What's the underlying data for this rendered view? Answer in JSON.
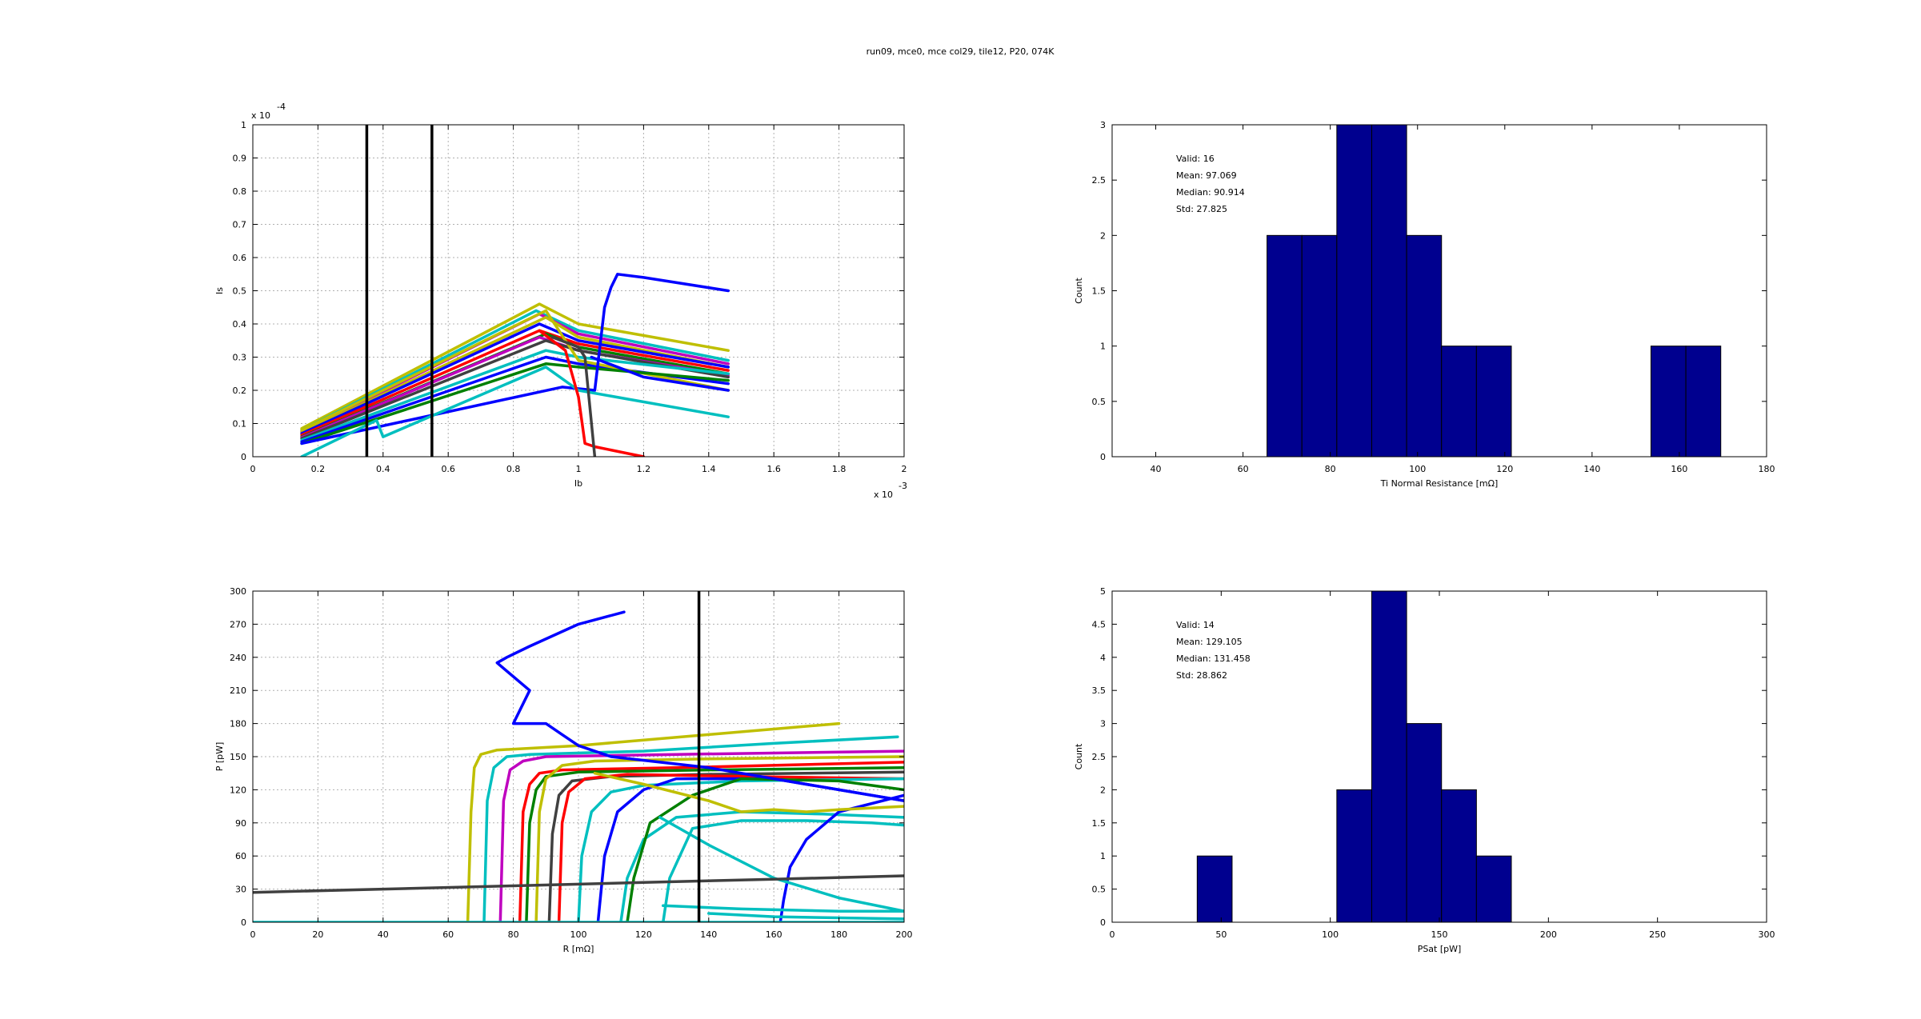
{
  "figure_title": "run09, mce0, mce col29, tile12, P20, 074K",
  "colors": {
    "bar_fill": "#00008f",
    "marker_line": "#000000",
    "grid": "#b0b0b0",
    "series_palette": [
      "#0000ff",
      "#008000",
      "#ff0000",
      "#00bfbf",
      "#bf00bf",
      "#bfbf00",
      "#404040"
    ]
  },
  "chart_data": [
    {
      "type": "line",
      "xlabel": "Ib",
      "ylabel": "Is",
      "x_exponent": "x 10",
      "x_exponent_power": "-3",
      "y_exponent": "x 10",
      "y_exponent_power": "-4",
      "xlim": [
        0,
        2
      ],
      "ylim": [
        0,
        1
      ],
      "xticks": [
        "0",
        "0.2",
        "0.4",
        "0.6",
        "0.8",
        "1",
        "1.2",
        "1.4",
        "1.6",
        "1.8",
        "2"
      ],
      "yticks": [
        "0",
        "0.1",
        "0.2",
        "0.3",
        "0.4",
        "0.5",
        "0.6",
        "0.7",
        "0.8",
        "0.9",
        "1"
      ],
      "grid": true,
      "vlines": [
        0.35,
        0.55
      ],
      "series": [
        {
          "color": "#bfbf00",
          "x": [
            0.15,
            0.88,
            1.0,
            1.46
          ],
          "y": [
            0.085,
            0.46,
            0.4,
            0.32
          ]
        },
        {
          "color": "#00bfbf",
          "x": [
            0.15,
            0.87,
            1.0,
            1.46
          ],
          "y": [
            0.08,
            0.44,
            0.38,
            0.29
          ]
        },
        {
          "color": "#bf00bf",
          "x": [
            0.15,
            0.88,
            1.0,
            1.46
          ],
          "y": [
            0.075,
            0.43,
            0.37,
            0.28
          ]
        },
        {
          "color": "#bfbf00",
          "x": [
            0.15,
            0.9,
            1.0,
            1.46
          ],
          "y": [
            0.072,
            0.42,
            0.36,
            0.27
          ]
        },
        {
          "color": "#0000ff",
          "x": [
            0.15,
            0.88,
            1.0,
            1.46
          ],
          "y": [
            0.07,
            0.4,
            0.35,
            0.27
          ]
        },
        {
          "color": "#ff0000",
          "x": [
            0.15,
            0.88,
            1.0,
            1.46
          ],
          "y": [
            0.065,
            0.38,
            0.34,
            0.26
          ]
        },
        {
          "color": "#008000",
          "x": [
            0.15,
            0.9,
            1.0,
            1.46
          ],
          "y": [
            0.06,
            0.37,
            0.33,
            0.25
          ]
        },
        {
          "color": "#bf00bf",
          "x": [
            0.15,
            0.88,
            1.0,
            1.46
          ],
          "y": [
            0.058,
            0.36,
            0.32,
            0.245
          ]
        },
        {
          "color": "#404040",
          "x": [
            0.15,
            0.9,
            1.0,
            1.46
          ],
          "y": [
            0.055,
            0.35,
            0.32,
            0.24
          ]
        },
        {
          "color": "#00bfbf",
          "x": [
            0.15,
            0.9,
            1.0,
            1.46
          ],
          "y": [
            0.05,
            0.32,
            0.3,
            0.25
          ]
        },
        {
          "color": "#0000ff",
          "x": [
            0.15,
            0.9,
            1.0,
            1.46
          ],
          "y": [
            0.045,
            0.3,
            0.28,
            0.22
          ]
        },
        {
          "color": "#bfbf00",
          "x": [
            0.15,
            0.9,
            1.0,
            1.46
          ],
          "y": [
            0.08,
            0.44,
            0.29,
            0.2
          ]
        },
        {
          "color": "#008000",
          "x": [
            0.15,
            0.9,
            1.0,
            1.46
          ],
          "y": [
            0.04,
            0.28,
            0.27,
            0.23
          ]
        },
        {
          "color": "#0000ff",
          "x": [
            0.15,
            0.95,
            1.05,
            1.08,
            1.1,
            1.12,
            1.2,
            1.46
          ],
          "y": [
            0.04,
            0.21,
            0.2,
            0.45,
            0.51,
            0.55,
            0.54,
            0.5
          ]
        },
        {
          "color": "#0000ff",
          "x": [
            1.04,
            1.2,
            1.46
          ],
          "y": [
            0.3,
            0.24,
            0.2
          ]
        },
        {
          "color": "#00bfbf",
          "x": [
            0.15,
            0.38,
            0.4,
            0.9,
            1.0,
            1.46
          ],
          "y": [
            0.0,
            0.11,
            0.06,
            0.27,
            0.2,
            0.12
          ]
        },
        {
          "color": "#ff0000",
          "x": [
            0.88,
            0.96,
            1.0,
            1.02,
            1.05,
            1.2
          ],
          "y": [
            0.38,
            0.32,
            0.18,
            0.04,
            0.03,
            0.0
          ]
        },
        {
          "color": "#404040",
          "x": [
            0.92,
            1.0,
            1.02,
            1.04,
            1.05
          ],
          "y": [
            0.36,
            0.33,
            0.3,
            0.1,
            0.0
          ]
        }
      ]
    },
    {
      "type": "bar",
      "xlabel": "Ti Normal Resistance [mΩ]",
      "ylabel": "Count",
      "xlim": [
        30,
        180
      ],
      "ylim": [
        0,
        3
      ],
      "xticks": [
        "40",
        "60",
        "80",
        "100",
        "120",
        "140",
        "160",
        "180"
      ],
      "yticks": [
        "0",
        "0.5",
        "1",
        "1.5",
        "2",
        "2.5",
        "3"
      ],
      "grid": false,
      "bin_edges": [
        65.5,
        73.5,
        81.5,
        89.5,
        97.5,
        105.5,
        113.5,
        121.5,
        129.5,
        137.5,
        145.5,
        153.5,
        161.5,
        169.5
      ],
      "values": [
        2,
        2,
        3,
        3,
        2,
        1,
        1,
        0,
        0,
        0,
        0,
        1,
        1
      ],
      "stats": [
        "Valid: 16",
        "Mean: 97.069",
        "Median: 90.914",
        "Std: 27.825"
      ]
    },
    {
      "type": "line",
      "xlabel": "R [mΩ]",
      "ylabel": "P [pW]",
      "xlim": [
        0,
        200
      ],
      "ylim": [
        0,
        300
      ],
      "xticks": [
        "0",
        "20",
        "40",
        "60",
        "80",
        "100",
        "120",
        "140",
        "160",
        "180",
        "200"
      ],
      "yticks": [
        "0",
        "30",
        "60",
        "90",
        "120",
        "150",
        "180",
        "210",
        "240",
        "270",
        "300"
      ],
      "grid": true,
      "vlines": [
        137
      ],
      "series": [
        {
          "color": "#bfbf00",
          "x": [
            66,
            67,
            68,
            70,
            75,
            100,
            140,
            180
          ],
          "y": [
            0,
            100,
            140,
            152,
            156,
            160,
            170,
            180
          ]
        },
        {
          "color": "#00bfbf",
          "x": [
            71,
            72,
            74,
            78,
            85,
            120,
            160,
            198
          ],
          "y": [
            0,
            110,
            140,
            150,
            152,
            155,
            162,
            168
          ]
        },
        {
          "color": "#bf00bf",
          "x": [
            76,
            77,
            79,
            83,
            90,
            130,
            200
          ],
          "y": [
            0,
            110,
            138,
            146,
            150,
            152,
            155
          ]
        },
        {
          "color": "#ff0000",
          "x": [
            82,
            83,
            85,
            88,
            95,
            130,
            200
          ],
          "y": [
            0,
            100,
            125,
            135,
            138,
            140,
            145
          ]
        },
        {
          "color": "#008000",
          "x": [
            84,
            85,
            87,
            90,
            100,
            140,
            200
          ],
          "y": [
            0,
            90,
            120,
            132,
            136,
            138,
            140
          ]
        },
        {
          "color": "#bfbf00",
          "x": [
            87,
            88,
            90,
            95,
            105,
            140,
            200
          ],
          "y": [
            0,
            100,
            130,
            142,
            146,
            148,
            150
          ]
        },
        {
          "color": "#404040",
          "x": [
            91,
            92,
            94,
            98,
            110,
            140,
            200
          ],
          "y": [
            0,
            80,
            115,
            128,
            132,
            134,
            136
          ]
        },
        {
          "color": "#ff0000",
          "x": [
            94,
            95,
            97,
            102,
            115,
            150,
            200
          ],
          "y": [
            0,
            90,
            118,
            130,
            134,
            132,
            130
          ]
        },
        {
          "color": "#00bfbf",
          "x": [
            100,
            101,
            104,
            110,
            120,
            150,
            200
          ],
          "y": [
            0,
            60,
            100,
            118,
            124,
            128,
            130
          ]
        },
        {
          "color": "#0000ff",
          "x": [
            106,
            108,
            112,
            120,
            130,
            160,
            200
          ],
          "y": [
            0,
            60,
            100,
            120,
            130,
            130,
            110
          ]
        },
        {
          "color": "#00bfbf",
          "x": [
            113,
            115,
            120,
            130,
            150,
            175,
            200
          ],
          "y": [
            0,
            40,
            75,
            95,
            100,
            98,
            95
          ]
        },
        {
          "color": "#008000",
          "x": [
            115,
            117,
            122,
            135,
            150,
            180,
            200
          ],
          "y": [
            0,
            40,
            90,
            115,
            130,
            128,
            120
          ]
        },
        {
          "color": "#00bfbf",
          "x": [
            126,
            128,
            135,
            150,
            170,
            190,
            200
          ],
          "y": [
            0,
            40,
            85,
            92,
            92,
            90,
            88
          ]
        },
        {
          "color": "#0000ff",
          "x": [
            162,
            163,
            165,
            170,
            180,
            200
          ],
          "y": [
            0,
            20,
            50,
            75,
            100,
            115
          ]
        },
        {
          "color": "#00bfbf",
          "x": [
            125,
            140,
            160,
            180,
            200
          ],
          "y": [
            95,
            70,
            40,
            22,
            10
          ]
        },
        {
          "color": "#00bfbf",
          "x": [
            126,
            150,
            180,
            200
          ],
          "y": [
            15,
            12,
            10,
            10
          ]
        },
        {
          "color": "#00bfbf",
          "x": [
            140,
            160,
            180,
            200
          ],
          "y": [
            8,
            5,
            4,
            3
          ]
        },
        {
          "color": "#0000ff",
          "x": [
            114,
            100,
            85,
            78,
            75,
            85,
            80,
            90,
            95,
            100,
            110,
            125,
            140,
            160,
            180,
            200
          ],
          "y": [
            281,
            270,
            250,
            240,
            235,
            210,
            180,
            180,
            170,
            160,
            150,
            145,
            140,
            130,
            120,
            110
          ]
        },
        {
          "color": "#bfbf00",
          "x": [
            105,
            120,
            140,
            150,
            160,
            170,
            180,
            200
          ],
          "y": [
            135,
            125,
            110,
            100,
            102,
            100,
            102,
            105
          ]
        },
        {
          "color": "#404040",
          "x": [
            0,
            40,
            80,
            120,
            160,
            200
          ],
          "y": [
            27,
            30,
            33,
            36,
            39,
            42
          ]
        },
        {
          "color": "#00bfbf",
          "x": [
            0,
            200
          ],
          "y": [
            0,
            0
          ]
        }
      ]
    },
    {
      "type": "bar",
      "xlabel": "PSat [pW]",
      "ylabel": "Count",
      "xlim": [
        0,
        300
      ],
      "ylim": [
        0,
        5
      ],
      "xticks": [
        "0",
        "50",
        "100",
        "150",
        "200",
        "250",
        "300"
      ],
      "yticks": [
        "0",
        "0.5",
        "1",
        "1.5",
        "2",
        "2.5",
        "3",
        "3.5",
        "4",
        "4.5",
        "5"
      ],
      "grid": false,
      "bin_edges": [
        39,
        55,
        71,
        87,
        103,
        119,
        135,
        151,
        167,
        183
      ],
      "values": [
        1,
        0,
        0,
        0,
        2,
        5,
        3,
        2,
        1
      ],
      "stats": [
        "Valid: 14",
        "Mean: 129.105",
        "Median: 131.458",
        "Std: 28.862"
      ]
    }
  ]
}
